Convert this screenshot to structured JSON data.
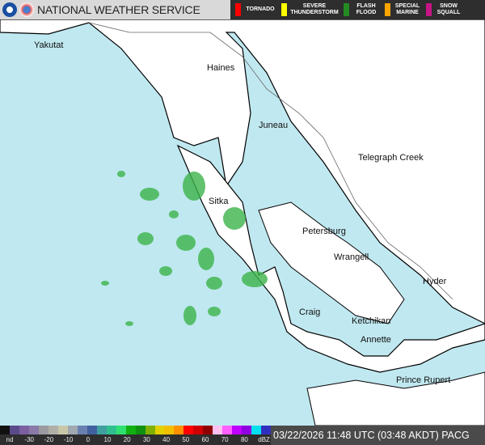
{
  "header": {
    "title": "NATIONAL WEATHER SERVICE"
  },
  "warnings": [
    {
      "label": "TORNADO",
      "color": "#ff0000"
    },
    {
      "label": "SEVERE THUNDERSTORM",
      "color": "#ffff00"
    },
    {
      "label": "FLASH FLOOD",
      "color": "#228b22"
    },
    {
      "label": "SPECIAL MARINE",
      "color": "#ffa500"
    },
    {
      "label": "SNOW SQUALL",
      "color": "#c71585"
    }
  ],
  "cities": [
    "Yakutat",
    "Haines",
    "Juneau",
    "Telegraph Creek",
    "Sitka",
    "Petersburg",
    "Wrangell",
    "Hyder",
    "Craig",
    "Ketchikan",
    "Annette",
    "Prince Rupert"
  ],
  "legend": {
    "ticks": [
      "nd",
      "-30",
      "-20",
      "-10",
      "0",
      "10",
      "20",
      "30",
      "40",
      "50",
      "60",
      "70",
      "80",
      "dBZ"
    ],
    "colors": [
      "#111111",
      "#5a4a8a",
      "#7b5fa0",
      "#8a7aa8",
      "#9a9aa0",
      "#b0b0a8",
      "#c8c8a8",
      "#a0a8b0",
      "#6a80b0",
      "#4060a0",
      "#40a0a0",
      "#30c090",
      "#30e070",
      "#10b010",
      "#109010",
      "#80b000",
      "#e0d000",
      "#f0c000",
      "#ff9000",
      "#ff0000",
      "#d00000",
      "#900000",
      "#ffc0f0",
      "#ff60ff",
      "#c000ff",
      "#9000e0",
      "#00e0f0",
      "#3030c0"
    ]
  },
  "status": {
    "timestamp": "03/22/2026 11:48 UTC (03:48 AKDT) PACG"
  },
  "colors": {
    "water": "#c0e8f0",
    "land": "#ffffff",
    "radar": "#3cb44a"
  }
}
